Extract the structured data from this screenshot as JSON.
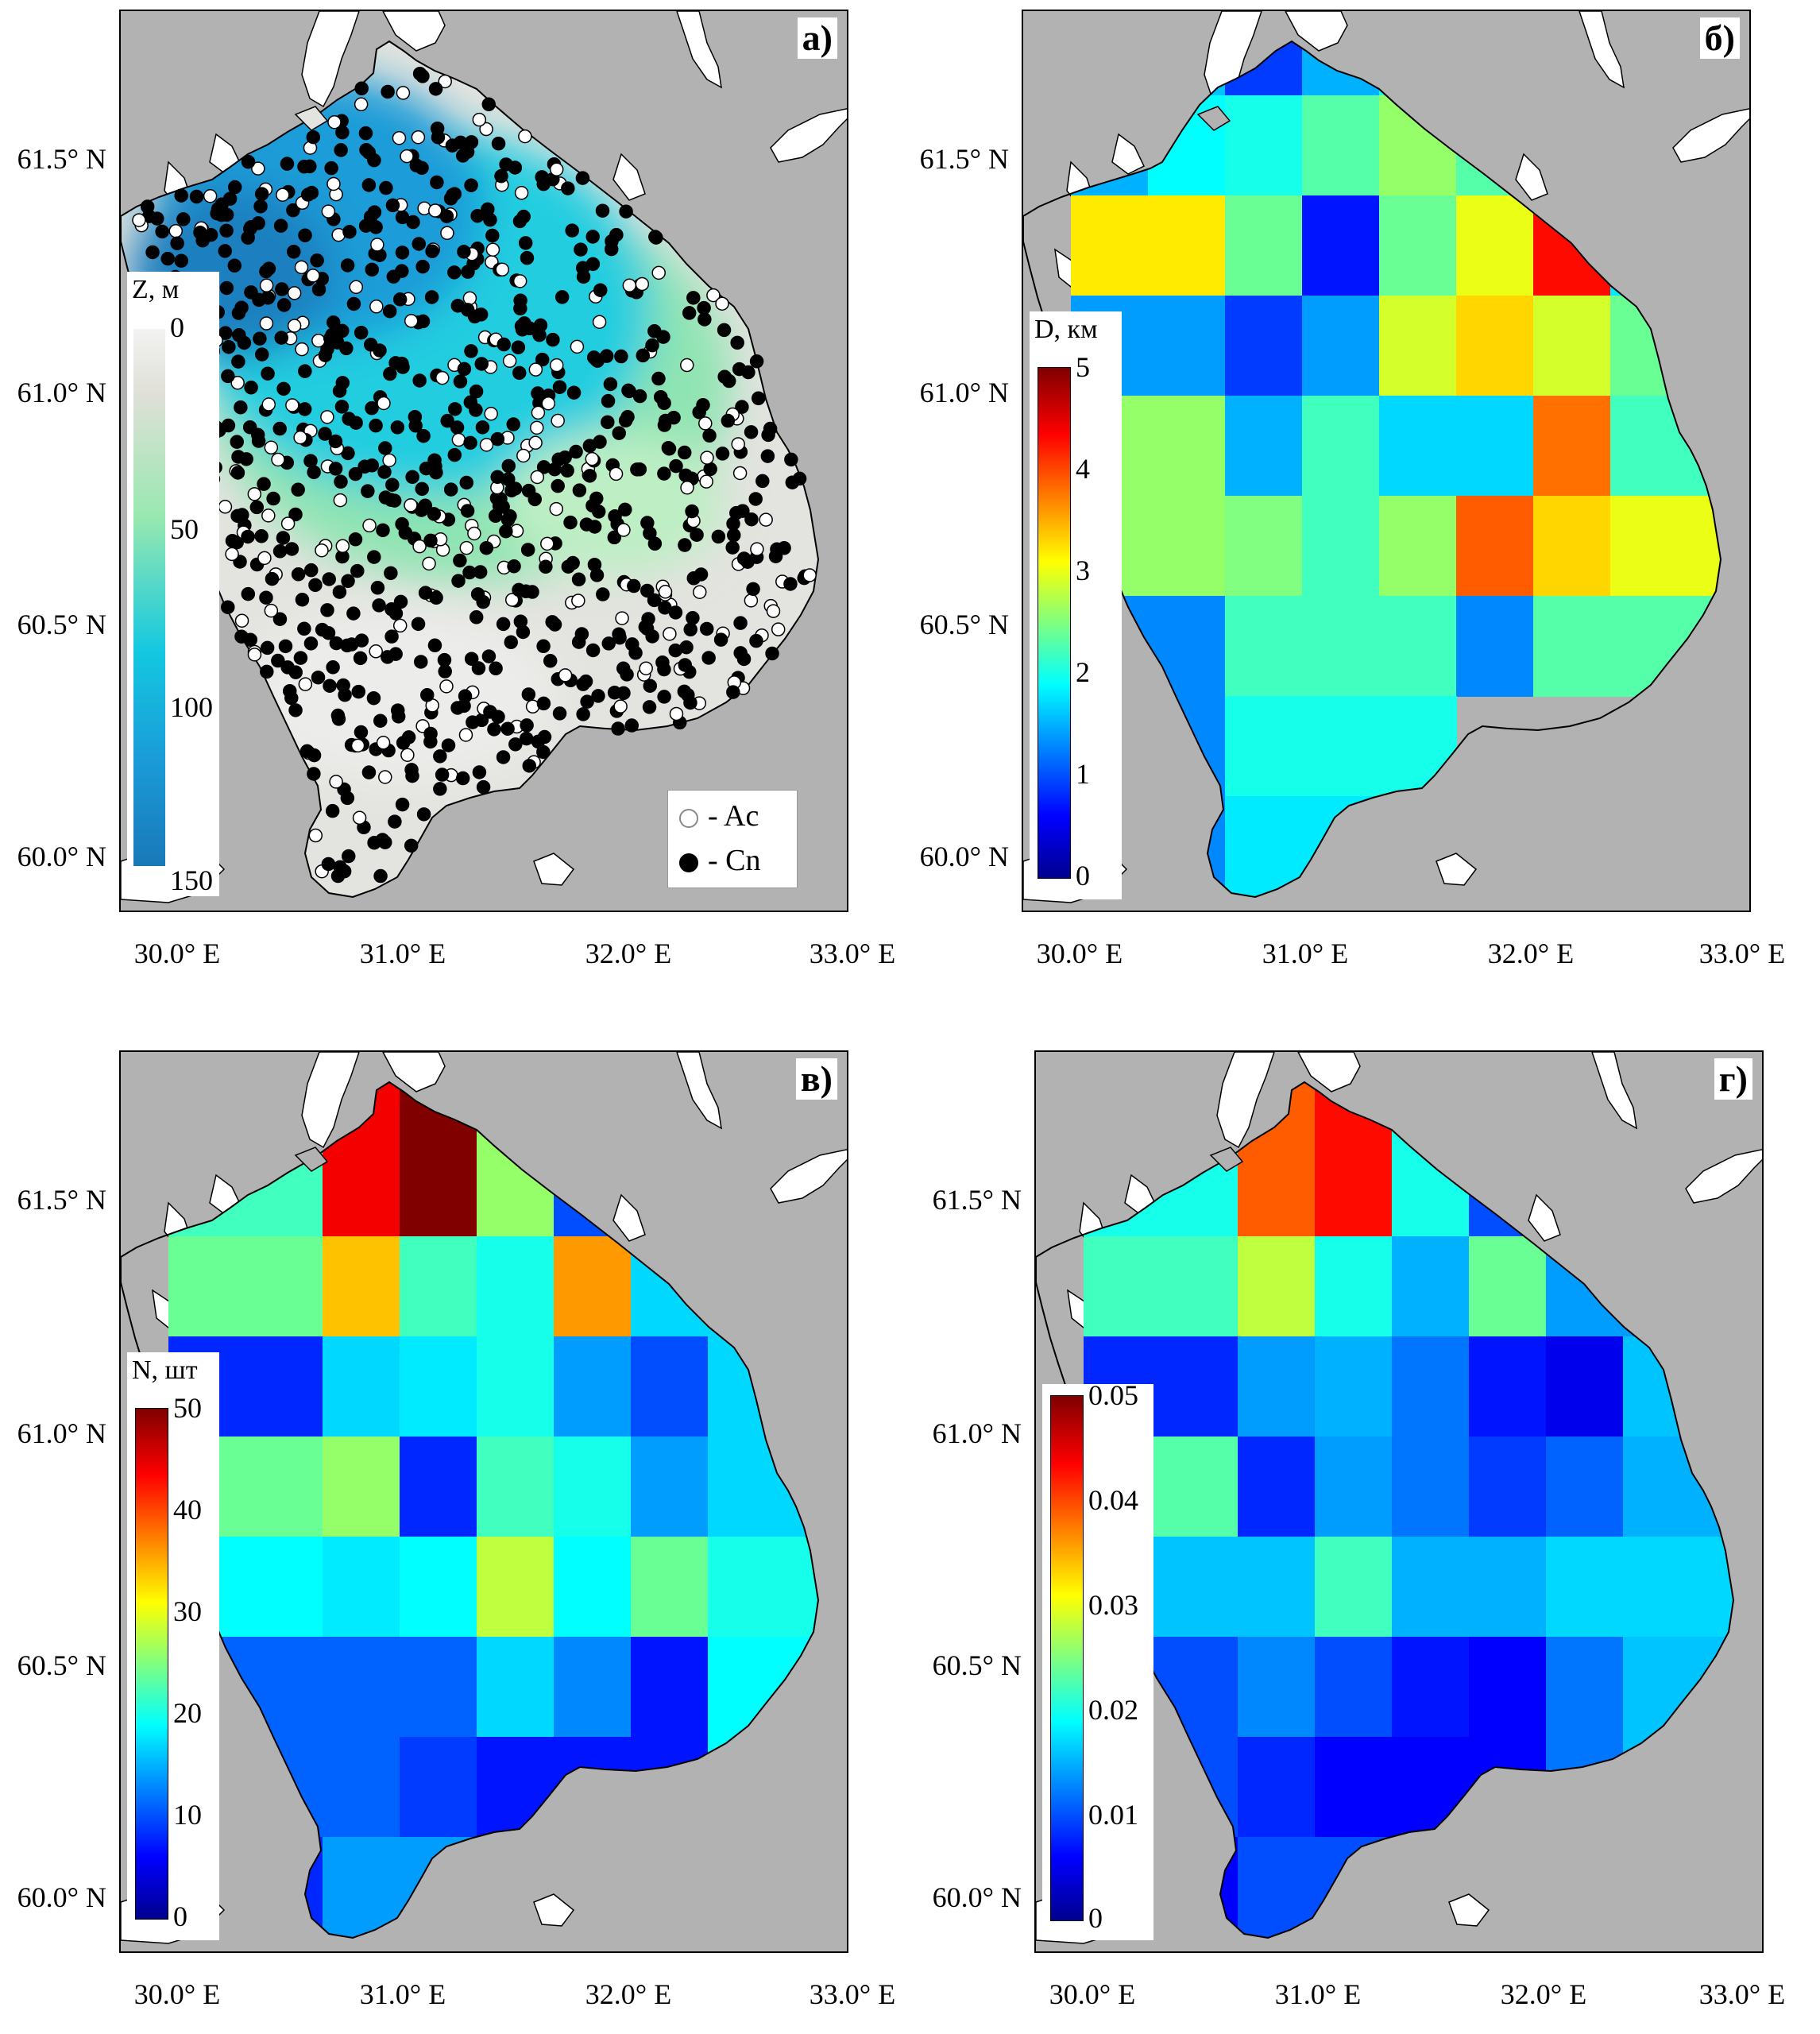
{
  "axes": {
    "lat_labels": [
      "61.5° N",
      "61.0° N",
      "60.5° N",
      "60.0° N"
    ],
    "lon_labels": [
      "30.0° E",
      "31.0° E",
      "32.0° E",
      "33.0° E"
    ]
  },
  "panels": [
    {
      "id": "a",
      "label": "а)",
      "colorbar": {
        "title": "Z, м",
        "ticks": [
          "0",
          "50",
          "100",
          "150"
        ]
      },
      "legend": [
        {
          "marker": "open",
          "label": "- Ac"
        },
        {
          "marker": "filled",
          "label": "- Cn"
        }
      ]
    },
    {
      "id": "b",
      "label": "б)",
      "colorbar": {
        "title": "D, км",
        "ticks": [
          "0",
          "1",
          "2",
          "3",
          "4",
          "5"
        ]
      }
    },
    {
      "id": "v",
      "label": "в)",
      "colorbar": {
        "title": "N, шт",
        "ticks": [
          "0",
          "10",
          "20",
          "30",
          "40",
          "50"
        ]
      }
    },
    {
      "id": "g",
      "label": "г)",
      "colorbar": {
        "title": "",
        "ticks": [
          "0",
          "0.01",
          "0.02",
          "0.03",
          "0.04",
          "0.05"
        ]
      }
    }
  ],
  "colors": {
    "background": "#b2b2b2",
    "land": "#ffffff",
    "depth_scale": [
      "#f2f2f2",
      "#98e8b0",
      "#14c8e0",
      "#1a88c8"
    ],
    "jet_scale": [
      "#00008f",
      "#0000ff",
      "#00ffff",
      "#ffff00",
      "#ff0000",
      "#800000"
    ],
    "marker_ac": "#ffffff",
    "marker_cn": "#000000"
  }
}
